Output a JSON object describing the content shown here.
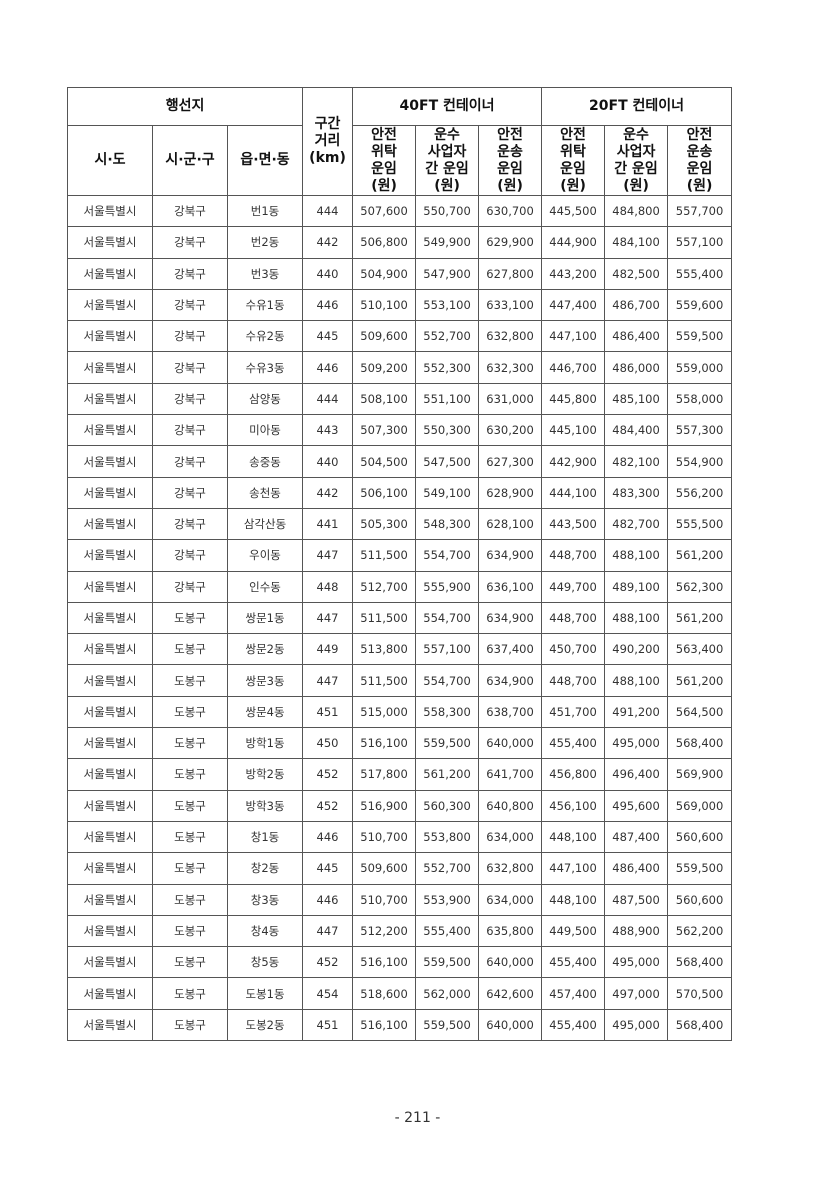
{
  "table": {
    "header": {
      "region_group": "행선지",
      "distance": "구간\n거리\n(km)",
      "ft40_group": "40FT 컨테이너",
      "ft20_group": "20FT 컨테이너",
      "sido": "시·도",
      "sigungu": "시·군·구",
      "eupmyeondong": "읍·면·동",
      "ft40_consign": "안전\n위탁\n운임\n(원)",
      "ft40_carrier": "운수\n사업자\n간 운임\n(원)",
      "ft40_transport": "안전\n운송\n운임\n(원)",
      "ft20_consign": "안전\n위탁\n운임\n(원)",
      "ft20_carrier": "운수\n사업자\n간 운임\n(원)",
      "ft20_transport": "안전\n운송\n운임\n(원)"
    },
    "rows": [
      [
        "서울특별시",
        "강북구",
        "번1동",
        "444",
        "507,600",
        "550,700",
        "630,700",
        "445,500",
        "484,800",
        "557,700"
      ],
      [
        "서울특별시",
        "강북구",
        "번2동",
        "442",
        "506,800",
        "549,900",
        "629,900",
        "444,900",
        "484,100",
        "557,100"
      ],
      [
        "서울특별시",
        "강북구",
        "번3동",
        "440",
        "504,900",
        "547,900",
        "627,800",
        "443,200",
        "482,500",
        "555,400"
      ],
      [
        "서울특별시",
        "강북구",
        "수유1동",
        "446",
        "510,100",
        "553,100",
        "633,100",
        "447,400",
        "486,700",
        "559,600"
      ],
      [
        "서울특별시",
        "강북구",
        "수유2동",
        "445",
        "509,600",
        "552,700",
        "632,800",
        "447,100",
        "486,400",
        "559,500"
      ],
      [
        "서울특별시",
        "강북구",
        "수유3동",
        "446",
        "509,200",
        "552,300",
        "632,300",
        "446,700",
        "486,000",
        "559,000"
      ],
      [
        "서울특별시",
        "강북구",
        "삼양동",
        "444",
        "508,100",
        "551,100",
        "631,000",
        "445,800",
        "485,100",
        "558,000"
      ],
      [
        "서울특별시",
        "강북구",
        "미아동",
        "443",
        "507,300",
        "550,300",
        "630,200",
        "445,100",
        "484,400",
        "557,300"
      ],
      [
        "서울특별시",
        "강북구",
        "송중동",
        "440",
        "504,500",
        "547,500",
        "627,300",
        "442,900",
        "482,100",
        "554,900"
      ],
      [
        "서울특별시",
        "강북구",
        "송천동",
        "442",
        "506,100",
        "549,100",
        "628,900",
        "444,100",
        "483,300",
        "556,200"
      ],
      [
        "서울특별시",
        "강북구",
        "삼각산동",
        "441",
        "505,300",
        "548,300",
        "628,100",
        "443,500",
        "482,700",
        "555,500"
      ],
      [
        "서울특별시",
        "강북구",
        "우이동",
        "447",
        "511,500",
        "554,700",
        "634,900",
        "448,700",
        "488,100",
        "561,200"
      ],
      [
        "서울특별시",
        "강북구",
        "인수동",
        "448",
        "512,700",
        "555,900",
        "636,100",
        "449,700",
        "489,100",
        "562,300"
      ],
      [
        "서울특별시",
        "도봉구",
        "쌍문1동",
        "447",
        "511,500",
        "554,700",
        "634,900",
        "448,700",
        "488,100",
        "561,200"
      ],
      [
        "서울특별시",
        "도봉구",
        "쌍문2동",
        "449",
        "513,800",
        "557,100",
        "637,400",
        "450,700",
        "490,200",
        "563,400"
      ],
      [
        "서울특별시",
        "도봉구",
        "쌍문3동",
        "447",
        "511,500",
        "554,700",
        "634,900",
        "448,700",
        "488,100",
        "561,200"
      ],
      [
        "서울특별시",
        "도봉구",
        "쌍문4동",
        "451",
        "515,000",
        "558,300",
        "638,700",
        "451,700",
        "491,200",
        "564,500"
      ],
      [
        "서울특별시",
        "도봉구",
        "방학1동",
        "450",
        "516,100",
        "559,500",
        "640,000",
        "455,400",
        "495,000",
        "568,400"
      ],
      [
        "서울특별시",
        "도봉구",
        "방학2동",
        "452",
        "517,800",
        "561,200",
        "641,700",
        "456,800",
        "496,400",
        "569,900"
      ],
      [
        "서울특별시",
        "도봉구",
        "방학3동",
        "452",
        "516,900",
        "560,300",
        "640,800",
        "456,100",
        "495,600",
        "569,000"
      ],
      [
        "서울특별시",
        "도봉구",
        "창1동",
        "446",
        "510,700",
        "553,800",
        "634,000",
        "448,100",
        "487,400",
        "560,600"
      ],
      [
        "서울특별시",
        "도봉구",
        "창2동",
        "445",
        "509,600",
        "552,700",
        "632,800",
        "447,100",
        "486,400",
        "559,500"
      ],
      [
        "서울특별시",
        "도봉구",
        "창3동",
        "446",
        "510,700",
        "553,900",
        "634,000",
        "448,100",
        "487,500",
        "560,600"
      ],
      [
        "서울특별시",
        "도봉구",
        "창4동",
        "447",
        "512,200",
        "555,400",
        "635,800",
        "449,500",
        "488,900",
        "562,200"
      ],
      [
        "서울특별시",
        "도봉구",
        "창5동",
        "452",
        "516,100",
        "559,500",
        "640,000",
        "455,400",
        "495,000",
        "568,400"
      ],
      [
        "서울특별시",
        "도봉구",
        "도봉1동",
        "454",
        "518,600",
        "562,000",
        "642,600",
        "457,400",
        "497,000",
        "570,500"
      ],
      [
        "서울특별시",
        "도봉구",
        "도봉2동",
        "451",
        "516,100",
        "559,500",
        "640,000",
        "455,400",
        "495,000",
        "568,400"
      ]
    ]
  },
  "page_number": "- 211 -"
}
